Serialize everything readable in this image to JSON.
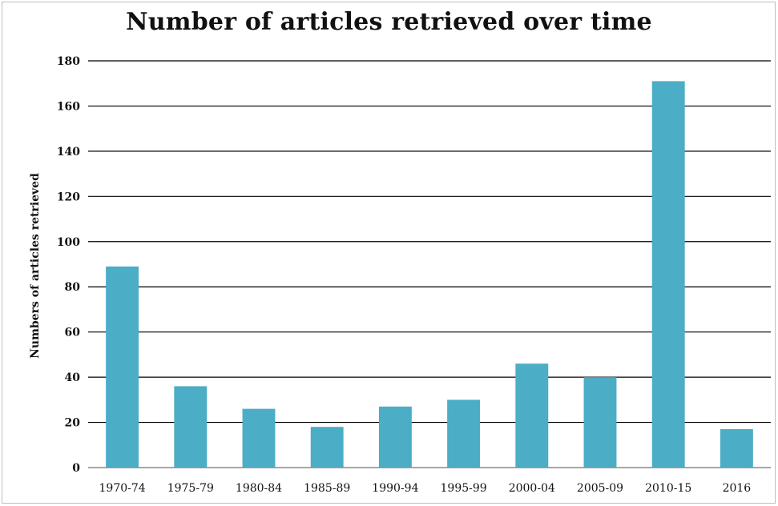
{
  "chart_data": {
    "type": "bar",
    "title": "Number of articles retrieved over time",
    "xlabel": "",
    "ylabel": "Numbers of articles retrieved",
    "categories": [
      "1970-74",
      "1975-79",
      "1980-84",
      "1985-89",
      "1990-94",
      "1995-99",
      "2000-04",
      "2005-09",
      "2010-15",
      "2016"
    ],
    "values": [
      89,
      36,
      26,
      18,
      27,
      30,
      46,
      40,
      171,
      17
    ],
    "ylim": [
      0,
      180
    ],
    "yticks": [
      0,
      20,
      40,
      60,
      80,
      100,
      120,
      140,
      160,
      180
    ],
    "grid": true,
    "legend": "none",
    "bar_color": "#4badc6"
  }
}
